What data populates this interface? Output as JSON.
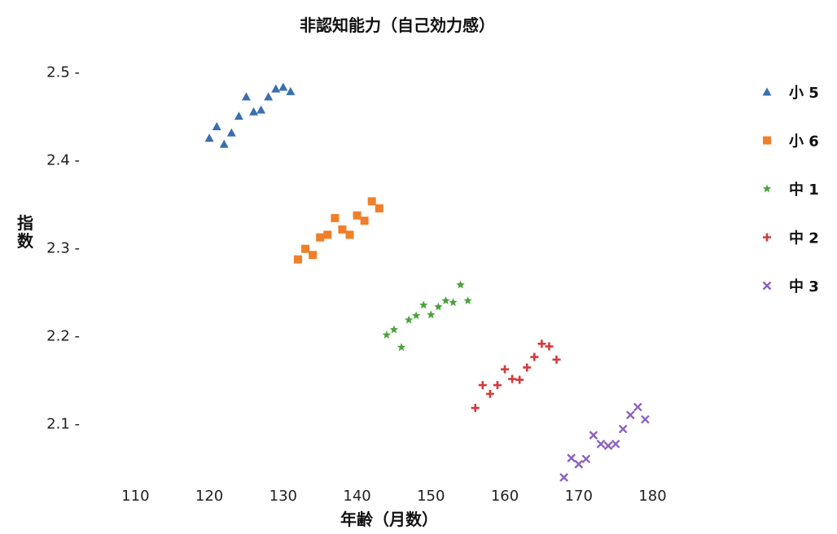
{
  "chart_data": {
    "type": "scatter",
    "title": "非認知能力（自己効力感）",
    "xlabel": "年齢（月数）",
    "ylabel": "指数",
    "xlim": [
      105,
      187
    ],
    "ylim": [
      2.02,
      2.52
    ],
    "x_ticks": [
      110,
      120,
      130,
      140,
      150,
      160,
      170,
      180
    ],
    "y_ticks": [
      2.1,
      2.2,
      2.3,
      2.4,
      2.5
    ],
    "x_tick_labels": [
      "110",
      "120",
      "130",
      "140",
      "150",
      "160",
      "170",
      "180"
    ],
    "y_tick_labels": [
      "2.1 -",
      "2.2 -",
      "2.3 -",
      "2.4 -",
      "2.5 -"
    ],
    "grid": false,
    "legend_position": "right",
    "series": [
      {
        "name": "小 5",
        "marker": "triangle",
        "color": "#3a6fb0",
        "points": [
          [
            120,
            2.425
          ],
          [
            121,
            2.438
          ],
          [
            122,
            2.418
          ],
          [
            123,
            2.431
          ],
          [
            124,
            2.45
          ],
          [
            125,
            2.472
          ],
          [
            126,
            2.455
          ],
          [
            127,
            2.457
          ],
          [
            128,
            2.472
          ],
          [
            129,
            2.481
          ],
          [
            130,
            2.483
          ],
          [
            131,
            2.478
          ]
        ]
      },
      {
        "name": "小 6",
        "marker": "square",
        "color": "#f07f2a",
        "points": [
          [
            132,
            2.287
          ],
          [
            133,
            2.299
          ],
          [
            134,
            2.292
          ],
          [
            135,
            2.312
          ],
          [
            136,
            2.315
          ],
          [
            137,
            2.334
          ],
          [
            138,
            2.321
          ],
          [
            139,
            2.315
          ],
          [
            140,
            2.337
          ],
          [
            141,
            2.331
          ],
          [
            142,
            2.353
          ],
          [
            143,
            2.345
          ]
        ]
      },
      {
        "name": "中 1",
        "marker": "star",
        "color": "#4ea13e",
        "points": [
          [
            144,
            2.201
          ],
          [
            145,
            2.207
          ],
          [
            146,
            2.187
          ],
          [
            147,
            2.218
          ],
          [
            148,
            2.223
          ],
          [
            149,
            2.235
          ],
          [
            150,
            2.224
          ],
          [
            151,
            2.233
          ],
          [
            152,
            2.24
          ],
          [
            153,
            2.238
          ],
          [
            154,
            2.258
          ],
          [
            155,
            2.24
          ]
        ]
      },
      {
        "name": "中 2",
        "marker": "plus",
        "color": "#d33b3b",
        "points": [
          [
            156,
            2.118
          ],
          [
            157,
            2.144
          ],
          [
            158,
            2.134
          ],
          [
            159,
            2.144
          ],
          [
            160,
            2.162
          ],
          [
            161,
            2.151
          ],
          [
            162,
            2.15
          ],
          [
            163,
            2.164
          ],
          [
            164,
            2.176
          ],
          [
            165,
            2.191
          ],
          [
            166,
            2.188
          ],
          [
            167,
            2.173
          ]
        ]
      },
      {
        "name": "中 3",
        "marker": "cross",
        "color": "#8c62bd",
        "points": [
          [
            168,
            2.039
          ],
          [
            169,
            2.061
          ],
          [
            170,
            2.054
          ],
          [
            171,
            2.06
          ],
          [
            172,
            2.087
          ],
          [
            173,
            2.077
          ],
          [
            174,
            2.075
          ],
          [
            175,
            2.077
          ],
          [
            176,
            2.094
          ],
          [
            177,
            2.11
          ],
          [
            178,
            2.119
          ],
          [
            179,
            2.105
          ]
        ]
      }
    ]
  }
}
